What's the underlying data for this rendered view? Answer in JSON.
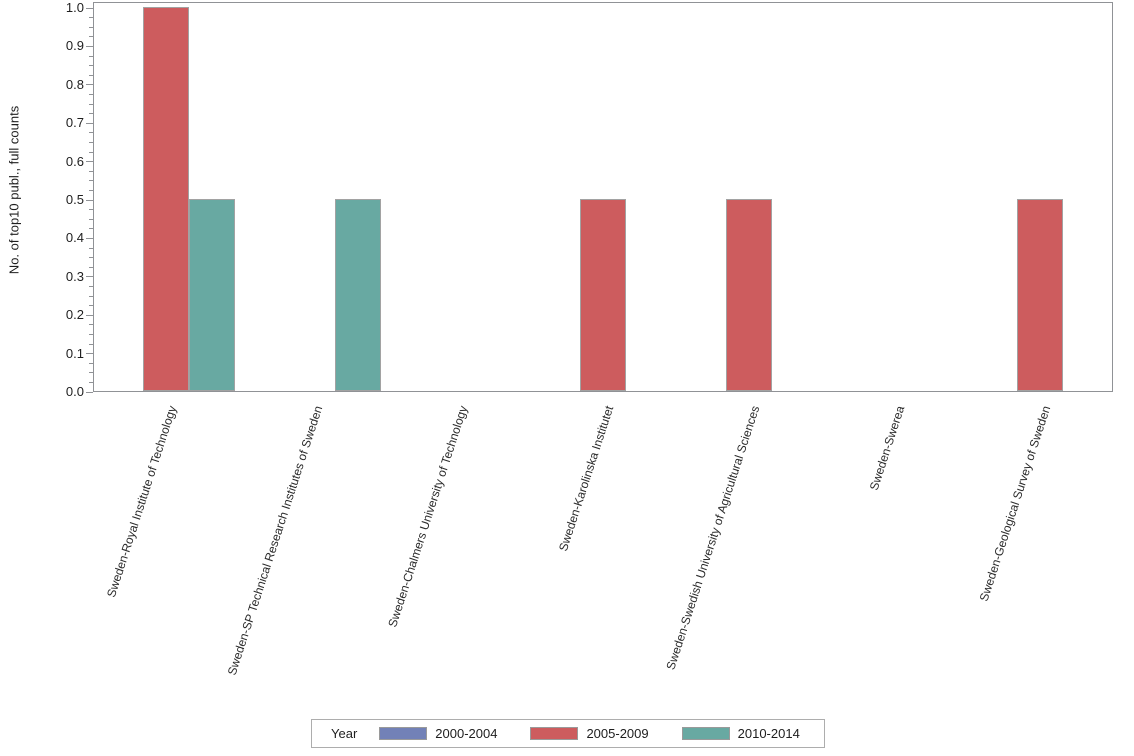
{
  "chart_data": {
    "type": "bar",
    "title": "",
    "legend_title": "Year",
    "legend_position": "bottom",
    "grid": false,
    "ylabel": "No. of top10 publ., full counts",
    "ylim": [
      0.0,
      1.0
    ],
    "ytick_step": 0.1,
    "minor_ticks_per_interval": 3,
    "categories": [
      "Sweden-Royal Institute of Technology",
      "Sweden-SP Technical Research Institutes of Sweden",
      "Sweden-Chalmers University of Technology",
      "Sweden-Karolinska Institutet",
      "Sweden-Swedish University of Agricultural Sciences",
      "Sweden-Swerea",
      "Sweden-Geological Survey of Sweden"
    ],
    "series": [
      {
        "name": "2000-2004",
        "color": "#7281B7",
        "values": [
          0,
          0,
          0,
          0,
          0,
          0,
          0
        ]
      },
      {
        "name": "2005-2009",
        "color": "#CD5C5E",
        "values": [
          1.0,
          0,
          0,
          0.5,
          0.5,
          0,
          0.5
        ]
      },
      {
        "name": "2010-2014",
        "color": "#68A9A2",
        "values": [
          0.5,
          0.5,
          0,
          0,
          0,
          0,
          0
        ]
      }
    ]
  },
  "colors": {
    "axis": "#909296",
    "bar_outline": "#A2A2A2",
    "legend_border": "#ADADAD",
    "swatch_border": "#9A9A9A",
    "text": "#1E1E1E"
  }
}
